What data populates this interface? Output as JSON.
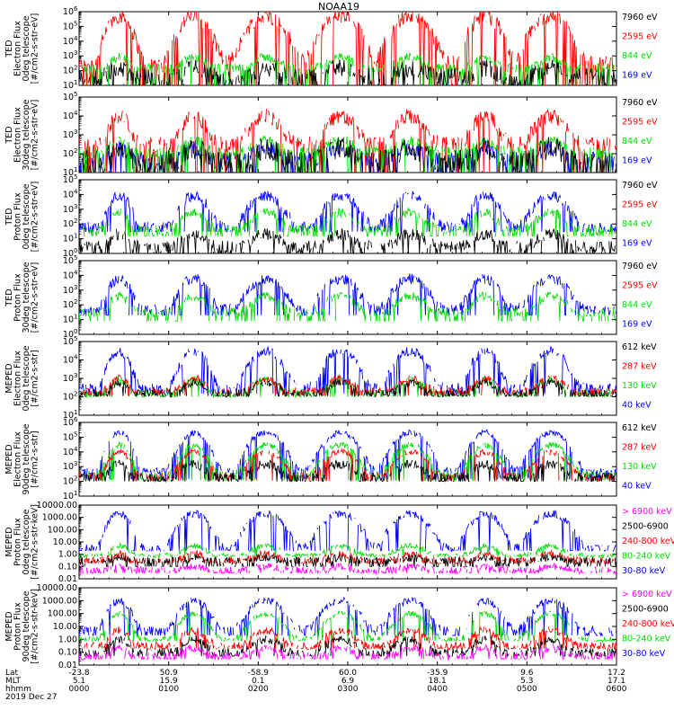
{
  "chart_data": {
    "type": "line",
    "title": "NOAA19",
    "x_axis": {
      "label_rows": [
        "Lat",
        "MLT",
        "hhmm"
      ],
      "date": "2019 Dec 27",
      "ticks": [
        {
          "lat": "-23.8",
          "mlt": "5.1",
          "hhmm": "0000"
        },
        {
          "lat": "50.9",
          "mlt": "15.9",
          "hhmm": "0100"
        },
        {
          "lat": "-58.9",
          "mlt": "0.1",
          "hhmm": "0200"
        },
        {
          "lat": "60.0",
          "mlt": "6.9",
          "hhmm": "0300"
        },
        {
          "lat": "-35.9",
          "mlt": "18.1",
          "hhmm": "0400"
        },
        {
          "lat": "9.6",
          "mlt": "5.3",
          "hhmm": "0500"
        },
        {
          "lat": "17.2",
          "mlt": "17.1",
          "hhmm": "0600"
        }
      ],
      "range_minutes": [
        0,
        360
      ]
    },
    "colors": {
      "ch1": "#ff00ff",
      "ch2": "#000000",
      "ch3": "#ff0000",
      "ch4": "#00dd00",
      "ch5": "#0000ff"
    },
    "passes": [
      {
        "center": 27,
        "half": 8,
        "polar": true
      },
      {
        "center": 77,
        "half": 10,
        "polar": true
      },
      {
        "center": 125,
        "half": 12,
        "polar": true
      },
      {
        "center": 175,
        "half": 12,
        "polar": true
      },
      {
        "center": 222,
        "half": 12,
        "polar": true
      },
      {
        "center": 272,
        "half": 10,
        "polar": true
      },
      {
        "center": 316,
        "half": 12,
        "polar": true
      }
    ],
    "panels": [
      {
        "ylabel": [
          "TED",
          "Electron Flux",
          "0deg telescope",
          "[#/cm2-s-str-eV]"
        ],
        "scale": "log",
        "ylim": [
          10,
          1000000
        ],
        "ticks": [
          {
            "v": 1000000,
            "base": "10",
            "exp": "6"
          },
          {
            "v": 100000,
            "base": "10",
            "exp": "5"
          },
          {
            "v": 10000,
            "base": "10",
            "exp": "4"
          },
          {
            "v": 1000,
            "base": "10",
            "exp": "3"
          },
          {
            "v": 100,
            "base": "10",
            "exp": "2"
          },
          {
            "v": 10,
            "base": "10",
            "exp": "1"
          }
        ],
        "legend": [
          {
            "label": "7960 eV",
            "color": "#000000"
          },
          {
            "label": "2595 eV",
            "color": "#ff0000"
          },
          {
            "label": "844 eV",
            "color": "#00dd00"
          },
          {
            "label": "169 eV",
            "color": "#0000ff"
          }
        ],
        "series": [
          {
            "color": "#ff0000",
            "base": 300,
            "peak": 500000,
            "floor": 10,
            "noise": 0.5
          },
          {
            "color": "#00dd00",
            "base": 150,
            "peak": 800,
            "floor": 10,
            "noise": 0.3
          },
          {
            "color": "#000000",
            "base": 40,
            "peak": 150,
            "floor": 10,
            "noise": 0.6
          }
        ]
      },
      {
        "ylabel": [
          "TED",
          "Electron Flux",
          "30deg telescope",
          "[#/cm2-s-str-eV]"
        ],
        "scale": "log",
        "ylim": [
          10,
          100000
        ],
        "ticks": [
          {
            "v": 100000,
            "base": "10",
            "exp": "5"
          },
          {
            "v": 10000,
            "base": "10",
            "exp": "4"
          },
          {
            "v": 1000,
            "base": "10",
            "exp": "3"
          },
          {
            "v": 100,
            "base": "10",
            "exp": "2"
          },
          {
            "v": 10,
            "base": "10",
            "exp": "1"
          }
        ],
        "legend": [
          {
            "label": "7960 eV",
            "color": "#000000"
          },
          {
            "label": "2595 eV",
            "color": "#ff0000"
          },
          {
            "label": "844 eV",
            "color": "#00dd00"
          },
          {
            "label": "169 eV",
            "color": "#0000ff"
          }
        ],
        "series": [
          {
            "color": "#0000ff",
            "base": 50,
            "peak": 200,
            "floor": 10,
            "noise": 0.4
          },
          {
            "color": "#ff0000",
            "base": 300,
            "peak": 10000,
            "floor": 10,
            "noise": 0.4
          },
          {
            "color": "#00dd00",
            "base": 120,
            "peak": 500,
            "floor": 10,
            "noise": 0.3
          },
          {
            "color": "#000000",
            "base": 40,
            "peak": 200,
            "floor": 10,
            "noise": 0.6
          }
        ]
      },
      {
        "ylabel": [
          "TED",
          "Proton Flux",
          "0deg telescope",
          "[#/cm2-s-str-eV]"
        ],
        "scale": "log",
        "ylim": [
          1,
          100000
        ],
        "ticks": [
          {
            "v": 100000,
            "base": "10",
            "exp": "5"
          },
          {
            "v": 10000,
            "base": "10",
            "exp": "4"
          },
          {
            "v": 1000,
            "base": "10",
            "exp": "3"
          },
          {
            "v": 100,
            "base": "10",
            "exp": "2"
          },
          {
            "v": 10,
            "base": "10",
            "exp": "1"
          },
          {
            "v": 1,
            "base": "10",
            "exp": "0"
          }
        ],
        "legend": [
          {
            "label": "7960 eV",
            "color": "#000000"
          },
          {
            "label": "2595 eV",
            "color": "#ff0000"
          },
          {
            "label": "844 eV",
            "color": "#00dd00"
          },
          {
            "label": "169 eV",
            "color": "#0000ff"
          }
        ],
        "series": [
          {
            "color": "#0000ff",
            "base": 60,
            "peak": 8000,
            "floor": 30,
            "noise": 0.35
          },
          {
            "color": "#00dd00",
            "base": 40,
            "peak": 600,
            "floor": 15,
            "noise": 0.3
          },
          {
            "color": "#000000",
            "base": 3,
            "peak": 20,
            "floor": 1,
            "noise": 0.4
          }
        ]
      },
      {
        "ylabel": [
          "TED",
          "Proton Flux",
          "30deg telescope",
          "[#/cm2-s-str-eV]"
        ],
        "scale": "log",
        "ylim": [
          1,
          100000
        ],
        "ticks": [
          {
            "v": 100000,
            "base": "10",
            "exp": "5"
          },
          {
            "v": 10000,
            "base": "10",
            "exp": "4"
          },
          {
            "v": 1000,
            "base": "10",
            "exp": "3"
          },
          {
            "v": 100,
            "base": "10",
            "exp": "2"
          },
          {
            "v": 10,
            "base": "10",
            "exp": "1"
          },
          {
            "v": 1,
            "base": "10",
            "exp": "0"
          }
        ],
        "legend": [
          {
            "label": "7960 eV",
            "color": "#000000"
          },
          {
            "label": "2595 eV",
            "color": "#ff0000"
          },
          {
            "label": "844 eV",
            "color": "#00dd00"
          },
          {
            "label": "169 eV",
            "color": "#0000ff"
          }
        ],
        "series": [
          {
            "color": "#0000ff",
            "base": 50,
            "peak": 6000,
            "floor": 20,
            "noise": 0.35
          },
          {
            "color": "#00dd00",
            "base": 30,
            "peak": 400,
            "floor": 8,
            "noise": 0.3
          }
        ]
      },
      {
        "ylabel": [
          "MEPED",
          "Electron Flux",
          "0deg telescope",
          "[#/cm2-s-str]"
        ],
        "scale": "log",
        "ylim": [
          10,
          100000
        ],
        "ticks": [
          {
            "v": 100000,
            "base": "10",
            "exp": "5"
          },
          {
            "v": 10000,
            "base": "10",
            "exp": "4"
          },
          {
            "v": 1000,
            "base": "10",
            "exp": "3"
          },
          {
            "v": 100,
            "base": "10",
            "exp": "2"
          },
          {
            "v": 10,
            "base": "10",
            "exp": "1"
          }
        ],
        "legend": [
          {
            "label": "612 keV",
            "color": "#000000"
          },
          {
            "label": "287 keV",
            "color": "#ff0000"
          },
          {
            "label": "130 keV",
            "color": "#00dd00"
          },
          {
            "label": "40 keV",
            "color": "#0000ff"
          }
        ],
        "series": [
          {
            "color": "#0000ff",
            "base": 300,
            "peak": 30000,
            "floor": 150,
            "noise": 0.25
          },
          {
            "color": "#00dd00",
            "base": 150,
            "peak": 800,
            "floor": 100,
            "noise": 0.2
          },
          {
            "color": "#ff0000",
            "base": 200,
            "peak": 1000,
            "floor": 120,
            "noise": 0.2
          },
          {
            "color": "#000000",
            "base": 150,
            "peak": 600,
            "floor": 110,
            "noise": 0.2
          }
        ]
      },
      {
        "ylabel": [
          "MEPED",
          "Electron Flux",
          "90deg telescope",
          "[#/cm2-s-str]"
        ],
        "scale": "log",
        "ylim": [
          10,
          1000000
        ],
        "ticks": [
          {
            "v": 1000000,
            "base": "10",
            "exp": "6"
          },
          {
            "v": 100000,
            "base": "10",
            "exp": "5"
          },
          {
            "v": 10000,
            "base": "10",
            "exp": "4"
          },
          {
            "v": 1000,
            "base": "10",
            "exp": "3"
          },
          {
            "v": 100,
            "base": "10",
            "exp": "2"
          },
          {
            "v": 10,
            "base": "10",
            "exp": "1"
          }
        ],
        "legend": [
          {
            "label": "612 keV",
            "color": "#000000"
          },
          {
            "label": "287 keV",
            "color": "#ff0000"
          },
          {
            "label": "130 keV",
            "color": "#00dd00"
          },
          {
            "label": "40 keV",
            "color": "#0000ff"
          }
        ],
        "series": [
          {
            "color": "#0000ff",
            "base": 500,
            "peak": 200000,
            "floor": 150,
            "noise": 0.2
          },
          {
            "color": "#00dd00",
            "base": 300,
            "peak": 30000,
            "floor": 120,
            "noise": 0.2
          },
          {
            "color": "#ff0000",
            "base": 250,
            "peak": 10000,
            "floor": 110,
            "noise": 0.2
          },
          {
            "color": "#000000",
            "base": 200,
            "peak": 1500,
            "floor": 100,
            "noise": 0.3
          }
        ]
      },
      {
        "ylabel": [
          "MEPED",
          "Proton Flux",
          "0deg telescope",
          "[#/cm2-s-str-keV]"
        ],
        "scale": "log",
        "ylim": [
          0.01,
          10000
        ],
        "ticks": [
          {
            "v": 10000,
            "label": "10000.00"
          },
          {
            "v": 1000,
            "label": "1000.00"
          },
          {
            "v": 100,
            "label": "100.00"
          },
          {
            "v": 10,
            "label": "10.00"
          },
          {
            "v": 1,
            "label": "1.00"
          },
          {
            "v": 0.1,
            "label": "0.10"
          },
          {
            "v": 0.01,
            "label": "0.01"
          }
        ],
        "legend": [
          {
            "label": "> 6900 keV",
            "color": "#ff00ff"
          },
          {
            "label": "2500-6900",
            "color": "#000000"
          },
          {
            "label": "240-800 keV",
            "color": "#ff0000"
          },
          {
            "label": "80-240 keV",
            "color": "#00dd00"
          },
          {
            "label": "30-80 keV",
            "color": "#0000ff"
          }
        ],
        "series": [
          {
            "color": "#0000ff",
            "base": 3,
            "peak": 2000,
            "floor": 2,
            "noise": 0.3
          },
          {
            "color": "#00dd00",
            "base": 0.8,
            "peak": 5,
            "floor": 0.8,
            "noise": 0.2
          },
          {
            "color": "#ff0000",
            "base": 0.3,
            "peak": 1,
            "floor": 0.2,
            "noise": 0.3
          },
          {
            "color": "#000000",
            "base": 0.3,
            "peak": 0.5,
            "floor": 0.1,
            "noise": 0.3
          },
          {
            "color": "#ff00ff",
            "base": 0.05,
            "peak": 0.1,
            "floor": 0.03,
            "noise": 0.3
          }
        ]
      },
      {
        "ylabel": [
          "MEPED",
          "Proton Flux",
          "90deg telescope",
          "[#/cm2-s-str-keV]"
        ],
        "scale": "log",
        "ylim": [
          0.01,
          10000
        ],
        "ticks": [
          {
            "v": 10000,
            "label": "10000.00"
          },
          {
            "v": 1000,
            "label": "1000.00"
          },
          {
            "v": 100,
            "label": "100.00"
          },
          {
            "v": 10,
            "label": "10.00"
          },
          {
            "v": 1,
            "label": "1.00"
          },
          {
            "v": 0.1,
            "label": "0.10"
          },
          {
            "v": 0.01,
            "label": "0.01"
          }
        ],
        "legend": [
          {
            "label": "> 6900 keV",
            "color": "#ff00ff"
          },
          {
            "label": "2500-6900",
            "color": "#000000"
          },
          {
            "label": "240-800 keV",
            "color": "#ff0000"
          },
          {
            "label": "80-240 keV",
            "color": "#00dd00"
          },
          {
            "label": "30-80 keV",
            "color": "#0000ff"
          }
        ],
        "series": [
          {
            "color": "#0000ff",
            "base": 5,
            "peak": 1000,
            "floor": 2,
            "noise": 0.3
          },
          {
            "color": "#00dd00",
            "base": 1,
            "peak": 100,
            "floor": 0.8,
            "noise": 0.2
          },
          {
            "color": "#ff0000",
            "base": 0.3,
            "peak": 5,
            "floor": 0.2,
            "noise": 0.3
          },
          {
            "color": "#000000",
            "base": 0.1,
            "peak": 1,
            "floor": 0.05,
            "noise": 0.3
          },
          {
            "color": "#ff00ff",
            "base": 0.05,
            "peak": 0.2,
            "floor": 0.03,
            "noise": 0.3
          }
        ]
      }
    ]
  }
}
